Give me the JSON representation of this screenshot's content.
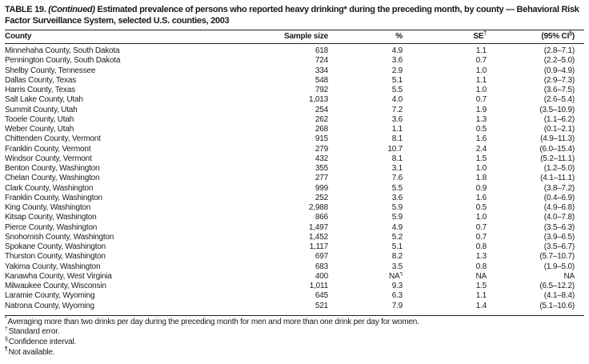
{
  "title": {
    "prefix": "TABLE 19.",
    "continued": "(Continued)",
    "text": "Estimated prevalence of persons who reported heavy drinking* during the preceding month, by county — Behavioral Risk Factor Surveillance System, selected U.S. counties, 2003"
  },
  "table": {
    "columns": [
      "County",
      "Sample size",
      "%",
      "SE†",
      "(95% CI§)"
    ],
    "rows": [
      [
        "Minnehaha County, South Dakota",
        "618",
        "4.9",
        "1.1",
        "(2.8–7.1)"
      ],
      [
        "Pennington County, South Dakota",
        "724",
        "3.6",
        "0.7",
        "(2.2–5.0)"
      ],
      [
        "Shelby County, Tennessee",
        "334",
        "2.9",
        "1.0",
        "(0.9–4.9)"
      ],
      [
        "Dallas County, Texas",
        "548",
        "5.1",
        "1.1",
        "(2.9–7.3)"
      ],
      [
        "Harris County, Texas",
        "792",
        "5.5",
        "1.0",
        "(3.6–7.5)"
      ],
      [
        "Salt Lake County, Utah",
        "1,013",
        "4.0",
        "0.7",
        "(2.6–5.4)"
      ],
      [
        "Summit County, Utah",
        "254",
        "7.2",
        "1.9",
        "(3.5–10.9)"
      ],
      [
        "Tooele County, Utah",
        "262",
        "3.6",
        "1.3",
        "(1.1–6.2)"
      ],
      [
        "Weber County, Utah",
        "268",
        "1.1",
        "0.5",
        "(0.1–2.1)"
      ],
      [
        "Chittenden County, Vermont",
        "915",
        "8.1",
        "1.6",
        "(4.9–11.3)"
      ],
      [
        "Franklin County, Vermont",
        "279",
        "10.7",
        "2.4",
        "(6.0–15.4)"
      ],
      [
        "Windsor County, Vermont",
        "432",
        "8.1",
        "1.5",
        "(5.2–11.1)"
      ],
      [
        "Benton County, Washington",
        "355",
        "3.1",
        "1.0",
        "(1.2–5.0)"
      ],
      [
        "Chelan County, Washington",
        "277",
        "7.6",
        "1.8",
        "(4.1–11.1)"
      ],
      [
        "Clark County, Washington",
        "999",
        "5.5",
        "0.9",
        "(3.8–7.2)"
      ],
      [
        "Franklin County, Washington",
        "252",
        "3.6",
        "1.6",
        "(0.4–6.9)"
      ],
      [
        "King County, Washington",
        "2,988",
        "5.9",
        "0.5",
        "(4.9–6.8)"
      ],
      [
        "Kitsap County, Washington",
        "866",
        "5.9",
        "1.0",
        "(4.0–7.8)"
      ],
      [
        "Pierce County, Washington",
        "1,497",
        "4.9",
        "0.7",
        "(3.5–6.3)"
      ],
      [
        "Snohomish County, Washington",
        "1,452",
        "5.2",
        "0.7",
        "(3.9–6.5)"
      ],
      [
        "Spokane County, Washington",
        "1,117",
        "5.1",
        "0.8",
        "(3.5–6.7)"
      ],
      [
        "Thurston County, Washington",
        "697",
        "8.2",
        "1.3",
        "(5.7–10.7)"
      ],
      [
        "Yakima County, Washington",
        "683",
        "3.5",
        "0.8",
        "(1.9–5.0)"
      ],
      [
        "Kanawha County, West Virginia",
        "400",
        "NA¶",
        "NA",
        "NA"
      ],
      [
        "Milwaukee County, Wisconsin",
        "1,011",
        "9.3",
        "1.5",
        "(6.5–12.2)"
      ],
      [
        "Laramie County, Wyoming",
        "645",
        "6.3",
        "1.1",
        "(4.1–8.4)"
      ],
      [
        "Natrona County, Wyoming",
        "521",
        "7.9",
        "1.4",
        "(5.1–10.6)"
      ]
    ]
  },
  "footnotes": [
    {
      "marker": "*",
      "text": "Averaging more than two drinks per day during the preceding month for men and more than one drink per day for women."
    },
    {
      "marker": "†",
      "text": "Standard error."
    },
    {
      "marker": "§",
      "text": "Confidence interval."
    },
    {
      "marker": "¶",
      "text": "Not available."
    }
  ],
  "colors": {
    "text": "#1a1a1a",
    "rule": "#222222",
    "background": "#ffffff"
  }
}
